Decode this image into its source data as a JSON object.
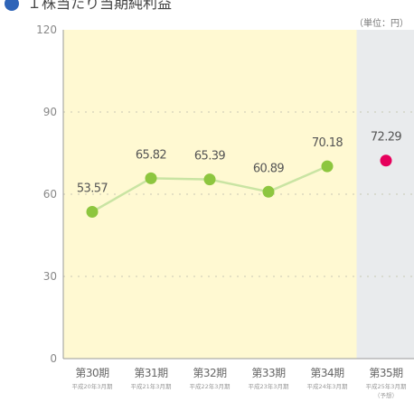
{
  "chart_data": {
    "type": "line",
    "title": "１株当たり当期純利益",
    "unit_label": "（単位：円）",
    "ylim": [
      0,
      120
    ],
    "yticks": [
      0,
      30,
      60,
      90,
      120
    ],
    "grid": true,
    "categories": [
      {
        "label": "第30期",
        "sub": "平成20年3月期"
      },
      {
        "label": "第31期",
        "sub": "平成21年3月期"
      },
      {
        "label": "第32期",
        "sub": "平成22年3月期"
      },
      {
        "label": "第33期",
        "sub": "平成23年3月期"
      },
      {
        "label": "第34期",
        "sub": "平成24年3月期"
      },
      {
        "label": "第35期",
        "sub": "平成25年3月期",
        "sub2": "（予想）"
      }
    ],
    "series": [
      {
        "values": [
          53.57,
          65.82,
          65.39,
          60.89,
          70.18,
          null
        ],
        "color": "#8dc63f"
      },
      {
        "values": [
          null,
          null,
          null,
          null,
          null,
          72.29
        ],
        "color": "#e6005c"
      }
    ],
    "data_labels": [
      "53.57",
      "65.82",
      "65.39",
      "60.89",
      "70.18",
      "72.29"
    ],
    "colors": {
      "actual_band": "#fff9d2",
      "forecast_band": "#e9ebed",
      "line": "#c9e4a3",
      "title_icon": "#2e64b8"
    }
  }
}
